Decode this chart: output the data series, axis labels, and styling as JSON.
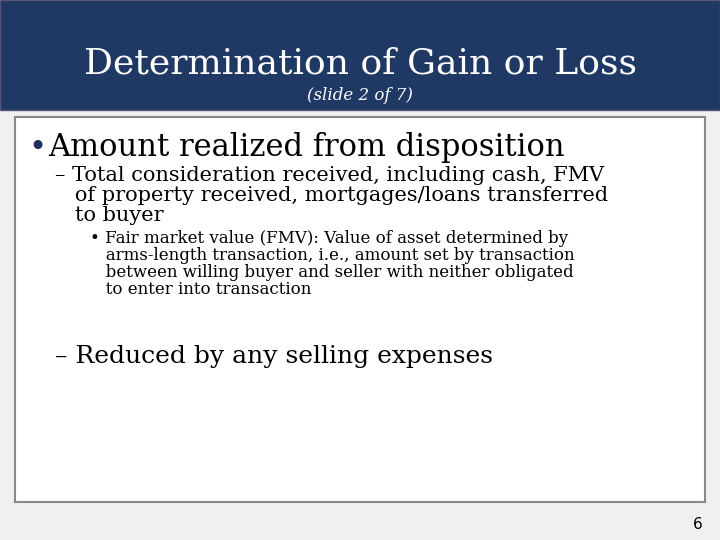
{
  "title": "Determination of Gain or Loss",
  "subtitle": "(slide 2 of 7)",
  "title_bg_color": "#1F3864",
  "title_text_color": "#FFFFFF",
  "subtitle_text_color": "#FFFFFF",
  "slide_bg_color": "#F0F0F0",
  "content_bg_color": "#FFFFFF",
  "content_border_color": "#888888",
  "page_number": "6",
  "bullet1": "Amount realized from disposition",
  "sub1_line1": "– Total consideration received, including cash, FMV",
  "sub1_line2": "   of property received, mortgages/loans transferred",
  "sub1_line3": "   to buyer",
  "sub2_line1": "• Fair market value (FMV): Value of asset determined by",
  "sub2_line2": "   arms-length transaction, i.e., amount set by transaction",
  "sub2_line3": "   between willing buyer and seller with neither obligated",
  "sub2_line4": "   to enter into transaction",
  "sub3": "– Reduced by any selling expenses",
  "title_fontsize": 26,
  "subtitle_fontsize": 12,
  "bullet1_fontsize": 22,
  "sub1_fontsize": 15,
  "sub2_fontsize": 12,
  "sub3_fontsize": 18,
  "page_num_fontsize": 11
}
